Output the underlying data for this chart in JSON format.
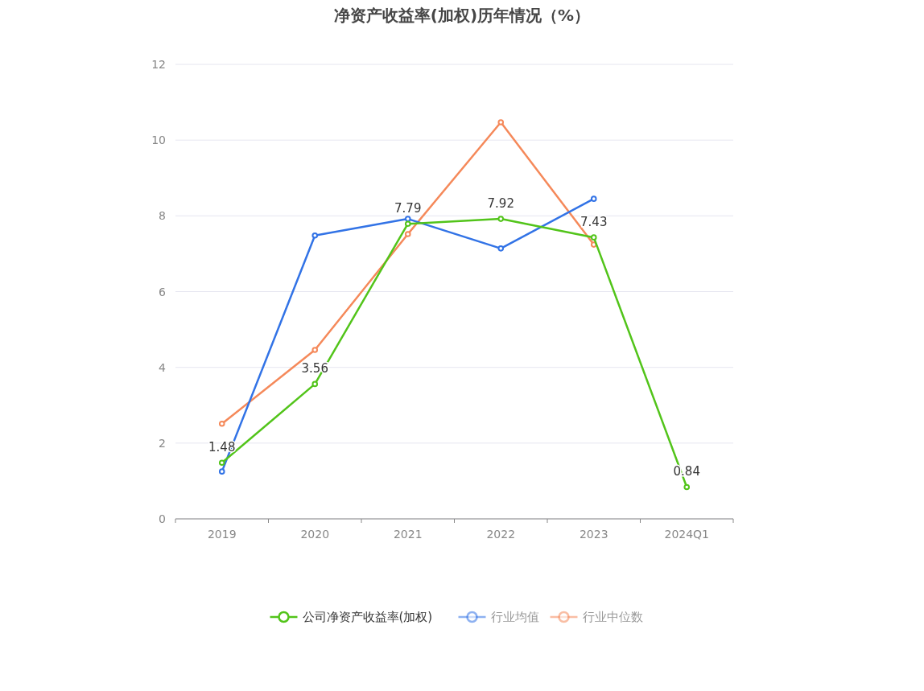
{
  "chart_data": {
    "type": "line",
    "title": "净资产收益率(加权)历年情况（%）",
    "categories": [
      "2019",
      "2020",
      "2021",
      "2022",
      "2023",
      "2024Q1"
    ],
    "series": [
      {
        "name": "公司净资产收益率(加权)",
        "color": "#52c41a",
        "values": [
          1.48,
          3.56,
          7.79,
          7.92,
          7.43,
          0.84
        ],
        "value_labels": [
          "1.48",
          "3.56",
          "7.79",
          "7.92",
          "7.43",
          "0.84"
        ]
      },
      {
        "name": "行业均值",
        "color": "#3273e6",
        "values": [
          1.25,
          7.48,
          7.92,
          7.14,
          8.45,
          null
        ]
      },
      {
        "name": "行业中位数",
        "color": "#f5895a",
        "values": [
          2.51,
          4.46,
          7.52,
          10.47,
          7.24,
          null
        ]
      }
    ],
    "ylim": [
      0,
      12
    ],
    "yticks": [
      0,
      2,
      4,
      6,
      8,
      10,
      12
    ],
    "grid": "y",
    "legend": "bottom",
    "marker": "circle"
  }
}
